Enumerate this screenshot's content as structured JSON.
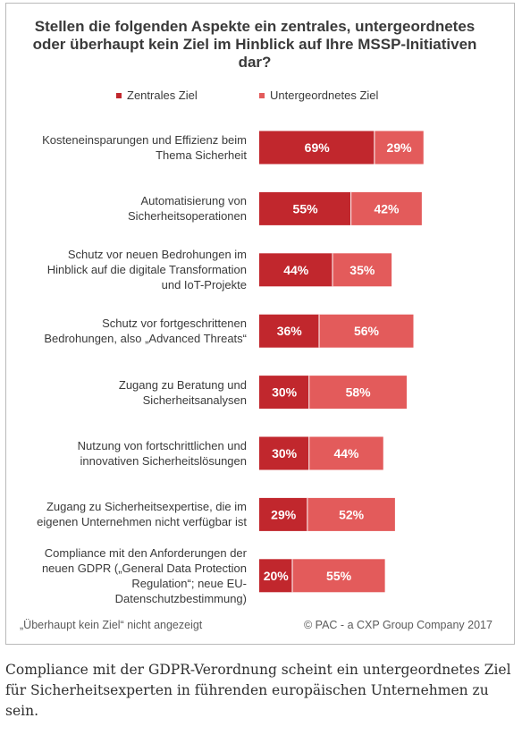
{
  "chart_data": {
    "type": "bar",
    "orientation": "horizontal",
    "stacked": true,
    "title": "Stellen die folgenden Aspekte ein zentrales, untergeordnetes oder überhaupt kein Ziel im Hinblick auf Ihre MSSP-Initiativen dar?",
    "categories": [
      "Kosteneinsparungen und Effizienz beim Thema Sicherheit",
      "Automatisierung von Sicherheitsoperationen",
      "Schutz vor neuen Bedrohungen im Hinblick auf die digitale Transformation und IoT-Projekte",
      "Schutz vor fortgeschrittenen Bedrohungen, also „Advanced Threats“",
      "Zugang zu Beratung und Sicherheitsanalysen",
      "Nutzung von fortschrittlichen und innovativen Sicherheitslösungen",
      "Zugang zu Sicherheitsexpertise, die im eigenen Unternehmen nicht verfügbar ist",
      "Compliance mit den Anforderungen der neuen GDPR („General Data Protection Regulation“; neue EU-Datenschutzbestimmung)"
    ],
    "category_lines": [
      [
        "Kosteneinsparungen und Effizienz beim",
        "Thema Sicherheit"
      ],
      [
        "Automatisierung von",
        "Sicherheitsoperationen"
      ],
      [
        "Schutz vor neuen Bedrohungen im",
        "Hinblick auf die digitale Transformation",
        "und IoT-Projekte"
      ],
      [
        "Schutz vor fortgeschrittenen",
        "Bedrohungen, also „Advanced Threats“"
      ],
      [
        "Zugang zu Beratung und",
        "Sicherheitsanalysen"
      ],
      [
        "Nutzung von fortschrittlichen und",
        "innovativen Sicherheitslösungen"
      ],
      [
        "Zugang zu Sicherheitsexpertise, die im",
        "eigenen Unternehmen nicht verfügbar ist"
      ],
      [
        "Compliance mit den Anforderungen der",
        "neuen GDPR („General Data Protection",
        "Regulation“; neue EU-",
        "Datenschutzbestimmung)"
      ]
    ],
    "series": [
      {
        "name": "Zentrales Ziel",
        "color": "#c1272d",
        "values": [
          69,
          55,
          44,
          36,
          30,
          30,
          29,
          20
        ]
      },
      {
        "name": "Untergeordnetes Ziel",
        "color": "#e35b5b",
        "values": [
          29,
          42,
          35,
          56,
          58,
          44,
          52,
          55
        ]
      }
    ],
    "value_suffix": "%",
    "legend_position": "top",
    "grid": false
  },
  "footer": {
    "note": "„Überhaupt kein Ziel“ nicht angezeigt",
    "source": "© PAC - a CXP Group Company 2017"
  },
  "caption": "Compliance mit der GDPR-Verordnung scheint ein untergeordnetes Ziel für Sicherheitsexperten in führenden europäischen Unternehmen zu sein."
}
